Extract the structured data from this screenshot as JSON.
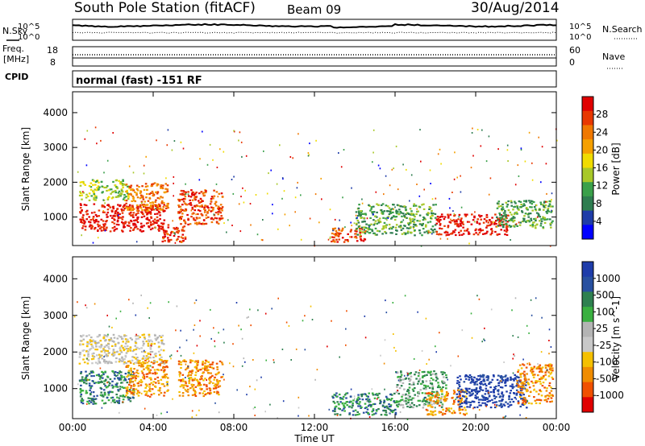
{
  "header": {
    "station": "South Pole Station (fitACF)",
    "beam": "Beam 09",
    "date": "30/Aug/2014"
  },
  "noise_panel": {
    "left_label": "N.Sky",
    "right_label": "N.Search",
    "ticks_left": [
      "10^5",
      "10^0"
    ],
    "ticks_right": [
      "10^5",
      "10^0"
    ]
  },
  "freq_panel": {
    "left_label_line1": "Freq.",
    "left_label_line2": "[MHz]",
    "right_label": "Nave",
    "ticks_left": [
      "18",
      "8"
    ],
    "ticks_right": [
      "60",
      "0"
    ]
  },
  "cpid_panel": {
    "label": "CPID",
    "text": "normal (fast) -151 RF"
  },
  "x_axis": {
    "label": "Time UT",
    "ticks": [
      "00:00",
      "04:00",
      "08:00",
      "12:00",
      "16:00",
      "20:00",
      "00:00"
    ]
  },
  "chart_data": [
    {
      "type": "heatmap",
      "name": "power",
      "ylabel": "Slant Range [km]",
      "yticks": [
        1000,
        2000,
        3000,
        4000
      ],
      "ylim": [
        180,
        4600
      ],
      "xlim_hours": [
        0,
        24
      ],
      "colorbar": {
        "label": "Power [dB]",
        "ticks": [
          "4",
          "8",
          "12",
          "16",
          "20",
          "24",
          "28"
        ],
        "colors": [
          "#0000ff",
          "#1e3ca8",
          "#2e7d50",
          "#3aa04a",
          "#a8c828",
          "#f0dc00",
          "#f5a000",
          "#f07800",
          "#e83800",
          "#e00000"
        ]
      },
      "regions": [
        {
          "t0": 0.3,
          "t1": 4.6,
          "r0": 600,
          "r1": 1400,
          "level": 9
        },
        {
          "t0": 0.3,
          "t1": 2.8,
          "r0": 1500,
          "r1": 2100,
          "level": 4
        },
        {
          "t0": 2.6,
          "t1": 4.7,
          "r0": 1200,
          "r1": 2000,
          "level": 7
        },
        {
          "t0": 4.4,
          "t1": 5.6,
          "r0": 300,
          "r1": 800,
          "level": 8
        },
        {
          "t0": 5.2,
          "t1": 7.4,
          "r0": 800,
          "r1": 1800,
          "level": 8
        },
        {
          "t0": 12.8,
          "t1": 14.6,
          "r0": 300,
          "r1": 700,
          "level": 8
        },
        {
          "t0": 14.0,
          "t1": 18.0,
          "r0": 500,
          "r1": 1400,
          "level": 3
        },
        {
          "t0": 18.0,
          "t1": 21.6,
          "r0": 500,
          "r1": 1100,
          "level": 9
        },
        {
          "t0": 21.0,
          "t1": 23.8,
          "r0": 700,
          "r1": 1500,
          "level": 3
        }
      ]
    },
    {
      "type": "heatmap",
      "name": "velocity",
      "ylabel": "Slant Range [km]",
      "yticks": [
        1000,
        2000,
        3000,
        4000
      ],
      "ylim": [
        180,
        4600
      ],
      "xlim_hours": [
        0,
        24
      ],
      "colorbar": {
        "label": "Velocity [m s^-1]",
        "ticks": [
          "-1000",
          "-500",
          "-100",
          "-25",
          "25",
          "100",
          "500",
          "1000"
        ],
        "colors": [
          "#e00000",
          "#f05000",
          "#f08c00",
          "#f5c000",
          "#c8c8c8",
          "#b4b4b4",
          "#3ab040",
          "#2e8050",
          "#2850a0",
          "#1e3caa"
        ]
      },
      "regions": [
        {
          "t0": 0.3,
          "t1": 3.0,
          "r0": 600,
          "r1": 1500,
          "level": 7
        },
        {
          "t0": 2.6,
          "t1": 4.7,
          "r0": 800,
          "r1": 1800,
          "level": 2
        },
        {
          "t0": 0.3,
          "t1": 4.5,
          "r0": 1700,
          "r1": 2500,
          "level": 4
        },
        {
          "t0": 5.2,
          "t1": 7.4,
          "r0": 800,
          "r1": 1800,
          "level": 2
        },
        {
          "t0": 12.8,
          "t1": 16.0,
          "r0": 300,
          "r1": 900,
          "level": 7
        },
        {
          "t0": 16.0,
          "t1": 18.5,
          "r0": 500,
          "r1": 1500,
          "level": 6
        },
        {
          "t0": 17.5,
          "t1": 19.5,
          "r0": 300,
          "r1": 1000,
          "level": 2
        },
        {
          "t0": 19.0,
          "t1": 22.5,
          "r0": 500,
          "r1": 1400,
          "level": 9
        },
        {
          "t0": 22.0,
          "t1": 23.8,
          "r0": 600,
          "r1": 1700,
          "level": 2
        }
      ]
    }
  ]
}
